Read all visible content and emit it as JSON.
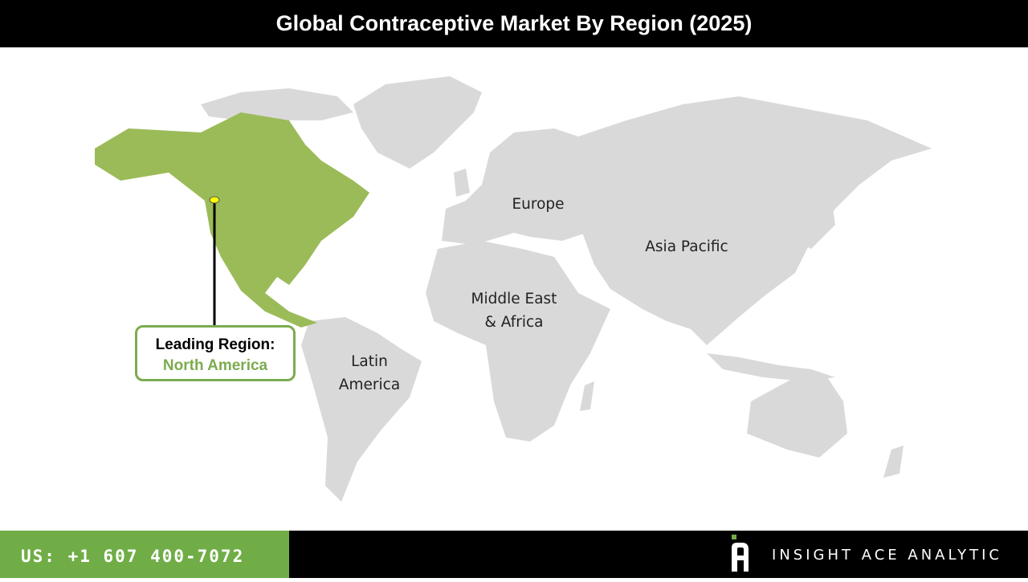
{
  "title": "Global Contraceptive Market By Region (2025)",
  "regions": {
    "europe": "Europe",
    "asia_pacific": "Asia Pacific",
    "mea_line1": "Middle East",
    "mea_line2": "& Africa",
    "latam_line1": "Latin",
    "latam_line2": "America",
    "north_america": "North America"
  },
  "callout": {
    "heading": "Leading Region:",
    "region": "North America"
  },
  "colors": {
    "highlight": "#9bbb59",
    "land": "#d9d9d9",
    "accent": "#70ad47",
    "marker": "#ffff00"
  },
  "footer": {
    "phone": "US: +1 607 400-7072",
    "brand": "INSIGHT ACE ANALYTIC"
  }
}
